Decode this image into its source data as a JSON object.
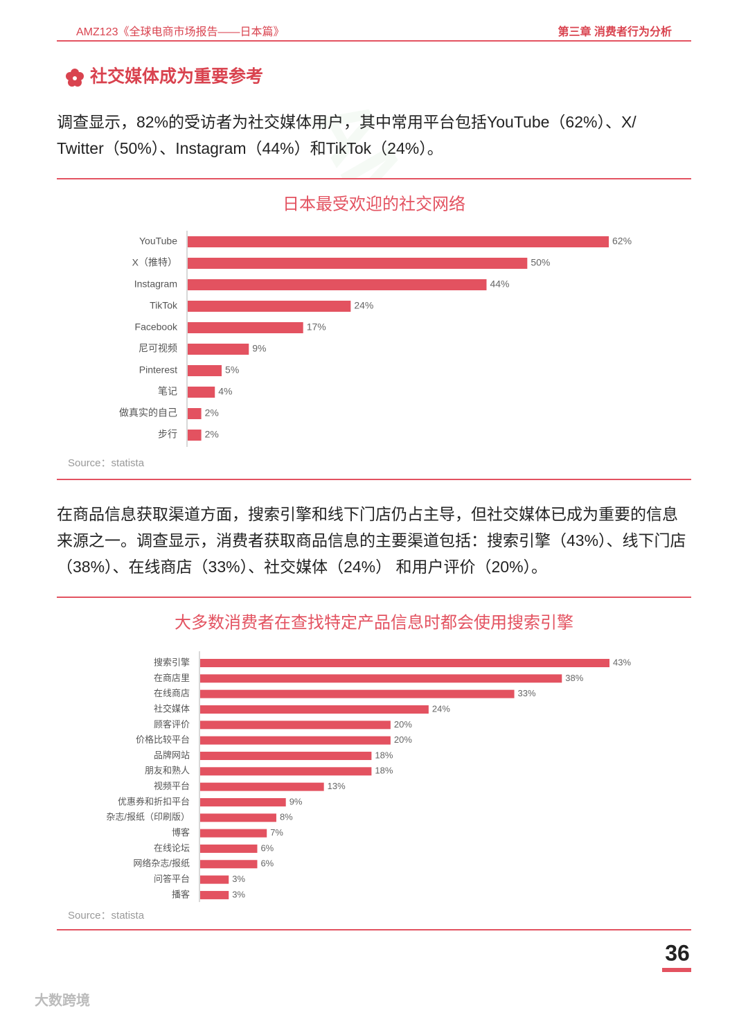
{
  "header": {
    "left": "AMZ123《全球电商市场报告——日本篇》",
    "right": "第三章  消费者行为分析"
  },
  "section_title": "社交媒体成为重要参考",
  "paragraphs": [
    "调查显示，82%的受访者为社交媒体用户，其中常用平台包括YouTube（62%）、X/ Twitter（50%）、Instagram（44%）和TikTok（24%）。",
    "在商品信息获取渠道方面，搜索引擎和线下门店仍占主导，但社交媒体已成为重要的信息来源之一。调查显示，消费者获取商品信息的主要渠道包括：搜索引擎（43%）、线下门店（38%）、在线商店（33%）、社交媒体（24%） 和用户评价（20%）。"
  ],
  "chart_data": [
    {
      "type": "bar",
      "orientation": "horizontal",
      "title": "日本最受欢迎的社交网络",
      "color": "#e35260",
      "categories": [
        "YouTube",
        "X（推特）",
        "Instagram",
        "TikTok",
        "Facebook",
        "尼可视频",
        "Pinterest",
        "笔记",
        "做真实的自己",
        "步行"
      ],
      "values": [
        62,
        50,
        44,
        24,
        17,
        9,
        5,
        4,
        2,
        2
      ],
      "value_labels": [
        "62%",
        "50%",
        "44%",
        "24%",
        "17%",
        "9%",
        "5%",
        "4%",
        "2%",
        "2%"
      ],
      "source": "Source：statista"
    },
    {
      "type": "bar",
      "orientation": "horizontal",
      "title": "大多数消费者在查找特定产品信息时都会使用搜索引擎",
      "color": "#e35260",
      "categories": [
        "搜索引擎",
        "在商店里",
        "在线商店",
        "社交媒体",
        "顾客评价",
        "价格比较平台",
        "品牌网站",
        "朋友和熟人",
        "视频平台",
        "优惠券和折扣平台",
        "杂志/报纸（印刷版）",
        "博客",
        "在线论坛",
        "网络杂志/报纸",
        "问答平台",
        "播客"
      ],
      "values": [
        43,
        38,
        33,
        24,
        20,
        20,
        18,
        18,
        13,
        9,
        8,
        7,
        6,
        6,
        3,
        3
      ],
      "value_labels": [
        "43%",
        "38%",
        "33%",
        "24%",
        "20%",
        "20%",
        "18%",
        "18%",
        "13%",
        "9%",
        "8%",
        "7%",
        "6%",
        "6%",
        "3%",
        "3%"
      ],
      "source": "Source：statista"
    }
  ],
  "page_number": "36",
  "footer": "大数跨境",
  "watermark": "AMZ123"
}
